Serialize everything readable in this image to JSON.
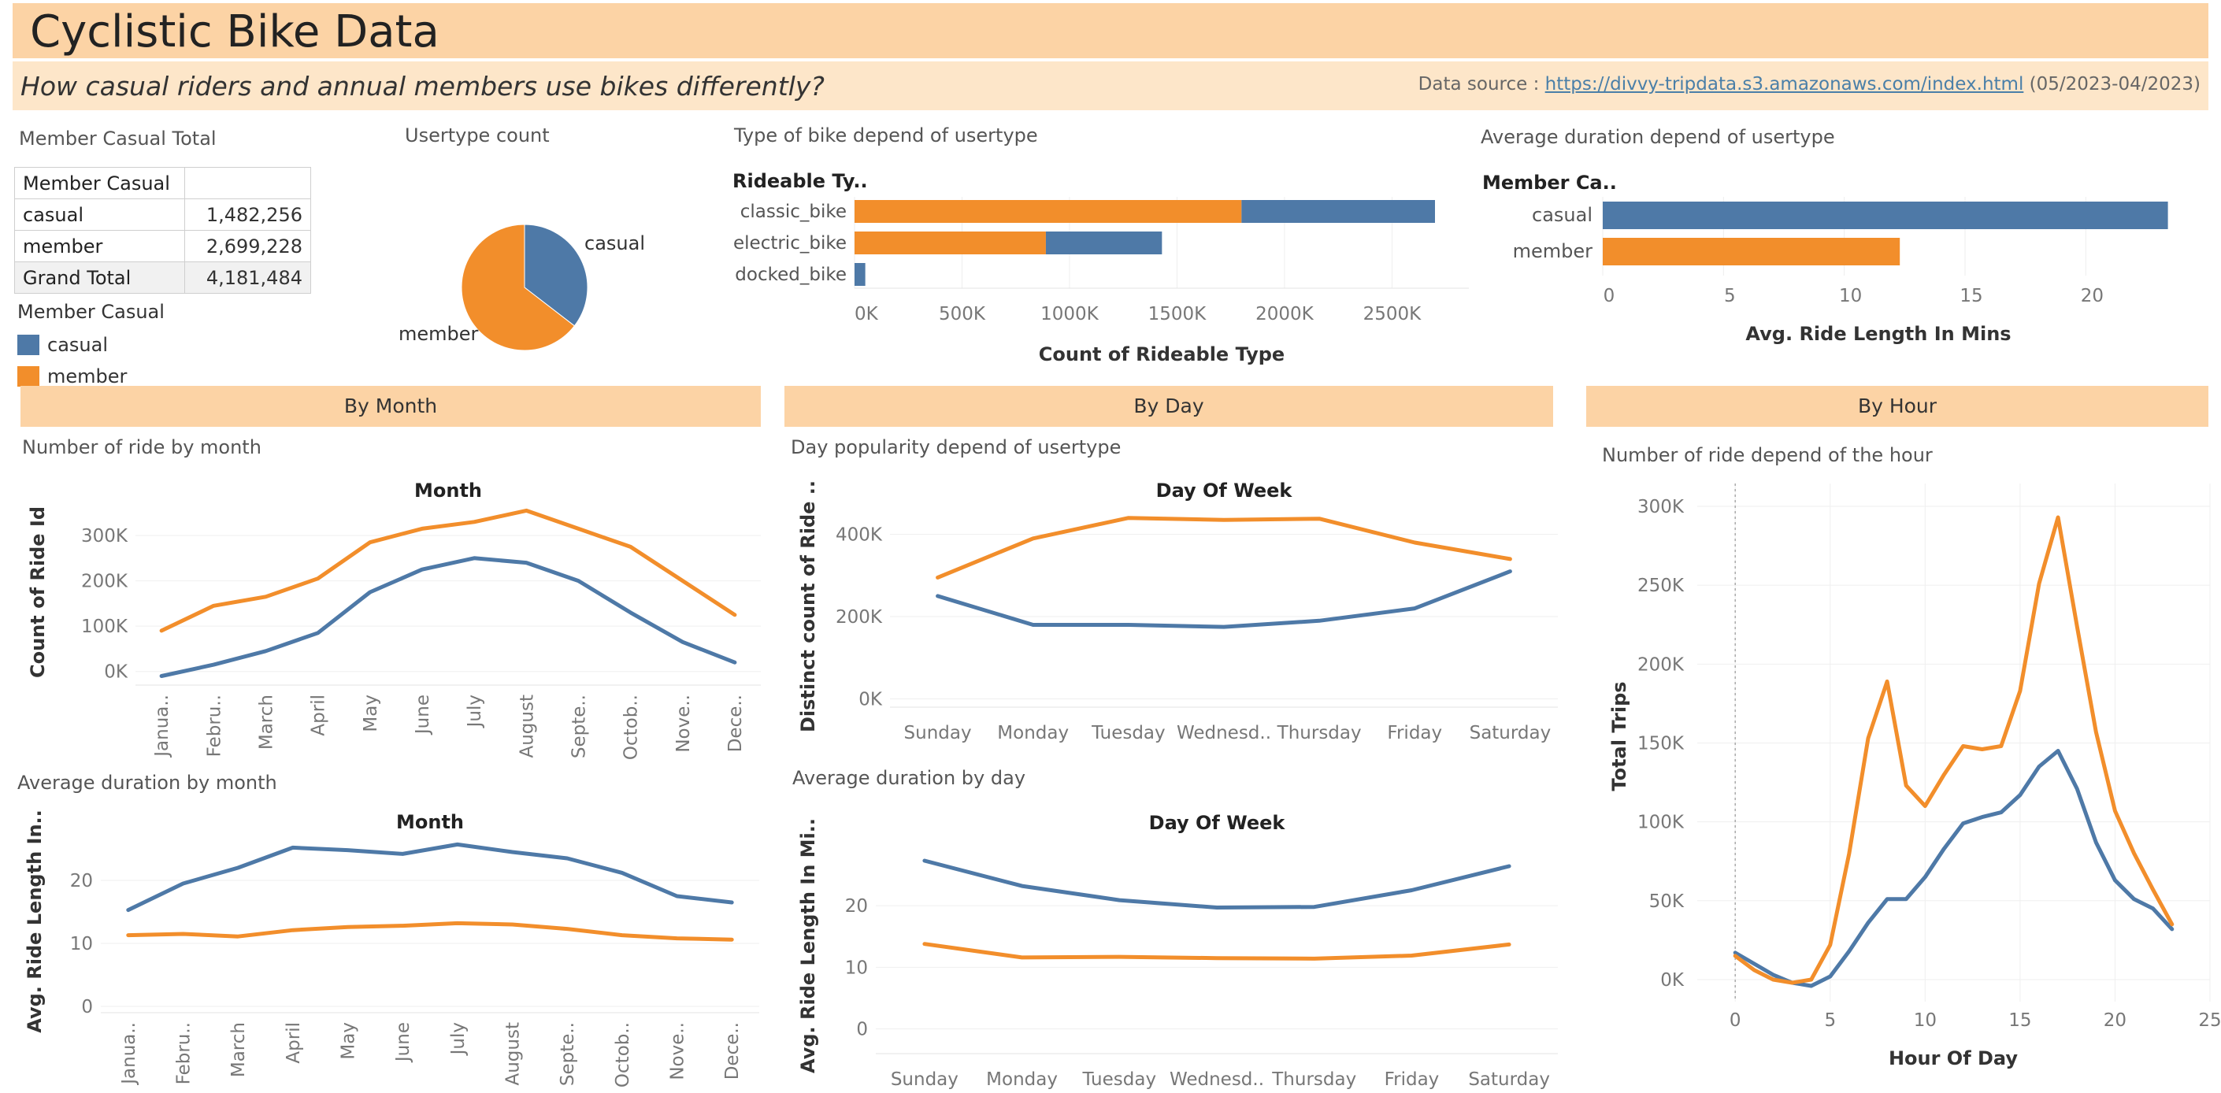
{
  "header": {
    "title": "Cyclistic Bike Data",
    "subtitle": "How casual riders and annual members use bikes differently?",
    "datasource_label": "Data source : ",
    "datasource_link": "https://divvy-tripdata.s3.amazonaws.com/index.html",
    "datasource_period": " (05/2023-04/2023)"
  },
  "colors": {
    "casual": "#4e79a7",
    "member": "#f28e2b",
    "header_bg": "#fcd3a5",
    "subheader_bg": "#fde6c9"
  },
  "total_table": {
    "title": "Member Casual Total",
    "header": "Member Casual",
    "rows": [
      {
        "label": "casual",
        "value": "1,482,256"
      },
      {
        "label": "member",
        "value": "2,699,228"
      }
    ],
    "grand_total_label": "Grand Total",
    "grand_total_value": "4,181,484"
  },
  "legend": {
    "title": "Member Casual",
    "items": [
      {
        "label": "casual"
      },
      {
        "label": "member"
      }
    ]
  },
  "sections": {
    "month": "By Month",
    "day": "By Day",
    "hour": "By Hour"
  },
  "panel_titles": {
    "pie": "Usertype count",
    "bike": "Type of bike depend of usertype",
    "duration": "Average duration depend of usertype",
    "ride_month": "Number of ride by month",
    "dur_month": "Average duration by month",
    "ride_day": "Day popularity depend of usertype",
    "dur_day": "Average duration by day",
    "hour": "Number of ride depend of the hour"
  },
  "chart_data": [
    {
      "id": "pie",
      "type": "pie",
      "labels": [
        "casual",
        "member"
      ],
      "values": [
        1482256,
        2699228
      ]
    },
    {
      "id": "bike",
      "type": "bar",
      "orientation": "horizontal",
      "stacked": true,
      "row_header": "Rideable Ty..",
      "categories": [
        "classic_bike",
        "electric_bike",
        "docked_bike"
      ],
      "series": [
        {
          "name": "member",
          "values": [
            1800000,
            890000,
            0
          ]
        },
        {
          "name": "casual",
          "values": [
            900000,
            540000,
            50000
          ]
        }
      ],
      "xlabel": "Count of Rideable Type",
      "xticks": [
        "0K",
        "500K",
        "1000K",
        "1500K",
        "2000K",
        "2500K"
      ],
      "xlim": [
        0,
        2700000
      ]
    },
    {
      "id": "duration",
      "type": "bar",
      "orientation": "horizontal",
      "row_header": "Member Ca..",
      "categories": [
        "casual",
        "member"
      ],
      "values": [
        23.4,
        12.3
      ],
      "xlabel": "Avg. Ride Length In Mins",
      "xticks": [
        "0",
        "5",
        "10",
        "15",
        "20"
      ],
      "xlim": [
        0,
        24
      ]
    },
    {
      "id": "ride_month",
      "type": "line",
      "title": "Month",
      "ylabel": "Count of Ride Id",
      "categories": [
        "Janua..",
        "Febru..",
        "March",
        "April",
        "May",
        "June",
        "July",
        "August",
        "Septe..",
        "Octob..",
        "Nove..",
        "Dece.."
      ],
      "series": [
        {
          "name": "casual",
          "values": [
            -10000,
            15000,
            45000,
            85000,
            175000,
            225000,
            250000,
            240000,
            200000,
            130000,
            65000,
            20000
          ]
        },
        {
          "name": "member",
          "values": [
            90000,
            145000,
            165000,
            205000,
            285000,
            315000,
            330000,
            355000,
            315000,
            275000,
            200000,
            125000
          ]
        }
      ],
      "ylim": [
        -30000,
        380000
      ],
      "yticks": [
        "0K",
        "100K",
        "200K",
        "300K"
      ]
    },
    {
      "id": "dur_month",
      "type": "line",
      "title": "Month",
      "ylabel": "Avg. Ride Length In..",
      "categories": [
        "Janua..",
        "Febru..",
        "March",
        "April",
        "May",
        "June",
        "July",
        "August",
        "Septe..",
        "Octob..",
        "Nove..",
        "Dece.."
      ],
      "series": [
        {
          "name": "casual",
          "values": [
            15.3,
            19.5,
            22.0,
            25.2,
            24.8,
            24.2,
            25.7,
            24.5,
            23.5,
            21.2,
            17.5,
            16.5
          ]
        },
        {
          "name": "member",
          "values": [
            11.3,
            11.5,
            11.1,
            12.1,
            12.6,
            12.8,
            13.2,
            13.0,
            12.3,
            11.3,
            10.8,
            10.6
          ]
        }
      ],
      "ylim": [
        -1,
        28
      ],
      "yticks": [
        "0",
        "10",
        "20"
      ]
    },
    {
      "id": "ride_day",
      "type": "line",
      "title": "Day Of Week",
      "ylabel": "Distinct count of Ride ..",
      "categories": [
        "Sunday",
        "Monday",
        "Tuesday",
        "Wednesd..",
        "Thursday",
        "Friday",
        "Saturday"
      ],
      "series": [
        {
          "name": "casual",
          "values": [
            250000,
            180000,
            180000,
            175000,
            190000,
            220000,
            310000
          ]
        },
        {
          "name": "member",
          "values": [
            295000,
            390000,
            440000,
            435000,
            438000,
            380000,
            340000
          ]
        }
      ],
      "ylim": [
        -20000,
        470000
      ],
      "yticks": [
        "0K",
        "200K",
        "400K"
      ]
    },
    {
      "id": "dur_day",
      "type": "line",
      "title": "Day Of Week",
      "ylabel": "Avg. Ride Length In Mi..",
      "categories": [
        "Sunday",
        "Monday",
        "Tuesday",
        "Wednesd..",
        "Thursday",
        "Friday",
        "Saturday"
      ],
      "series": [
        {
          "name": "casual",
          "values": [
            27.3,
            23.2,
            20.9,
            19.7,
            19.8,
            22.5,
            26.4
          ]
        },
        {
          "name": "member",
          "values": [
            13.8,
            11.6,
            11.7,
            11.5,
            11.4,
            11.9,
            13.7
          ]
        }
      ],
      "ylim": [
        -4,
        31
      ],
      "yticks": [
        "0",
        "10",
        "20"
      ]
    },
    {
      "id": "hour",
      "type": "line",
      "xlabel": "Hour Of Day",
      "ylabel": "Total Trips",
      "x": [
        0,
        1,
        2,
        3,
        4,
        5,
        6,
        7,
        8,
        9,
        10,
        11,
        12,
        13,
        14,
        15,
        16,
        17,
        18,
        19,
        20,
        21,
        22,
        23
      ],
      "series": [
        {
          "name": "casual",
          "values": [
            17000,
            10000,
            3000,
            -2000,
            -4000,
            2000,
            18000,
            36000,
            51000,
            51000,
            65000,
            83000,
            99000,
            103000,
            106000,
            117000,
            135000,
            145000,
            121000,
            87000,
            63000,
            51000,
            45000,
            32000
          ]
        },
        {
          "name": "member",
          "values": [
            15000,
            6000,
            0,
            -2000,
            0,
            22000,
            80000,
            153000,
            189000,
            123000,
            110000,
            130000,
            148000,
            146000,
            148000,
            183000,
            251000,
            293000,
            224000,
            157000,
            107000,
            80000,
            57000,
            35000
          ]
        }
      ],
      "xlim": [
        -2,
        25
      ],
      "ylim": [
        -13000,
        305000
      ],
      "xticks": [
        0,
        5,
        10,
        15,
        20,
        25
      ],
      "yticks": [
        "0K",
        "50K",
        "100K",
        "150K",
        "200K",
        "250K",
        "300K"
      ]
    }
  ]
}
